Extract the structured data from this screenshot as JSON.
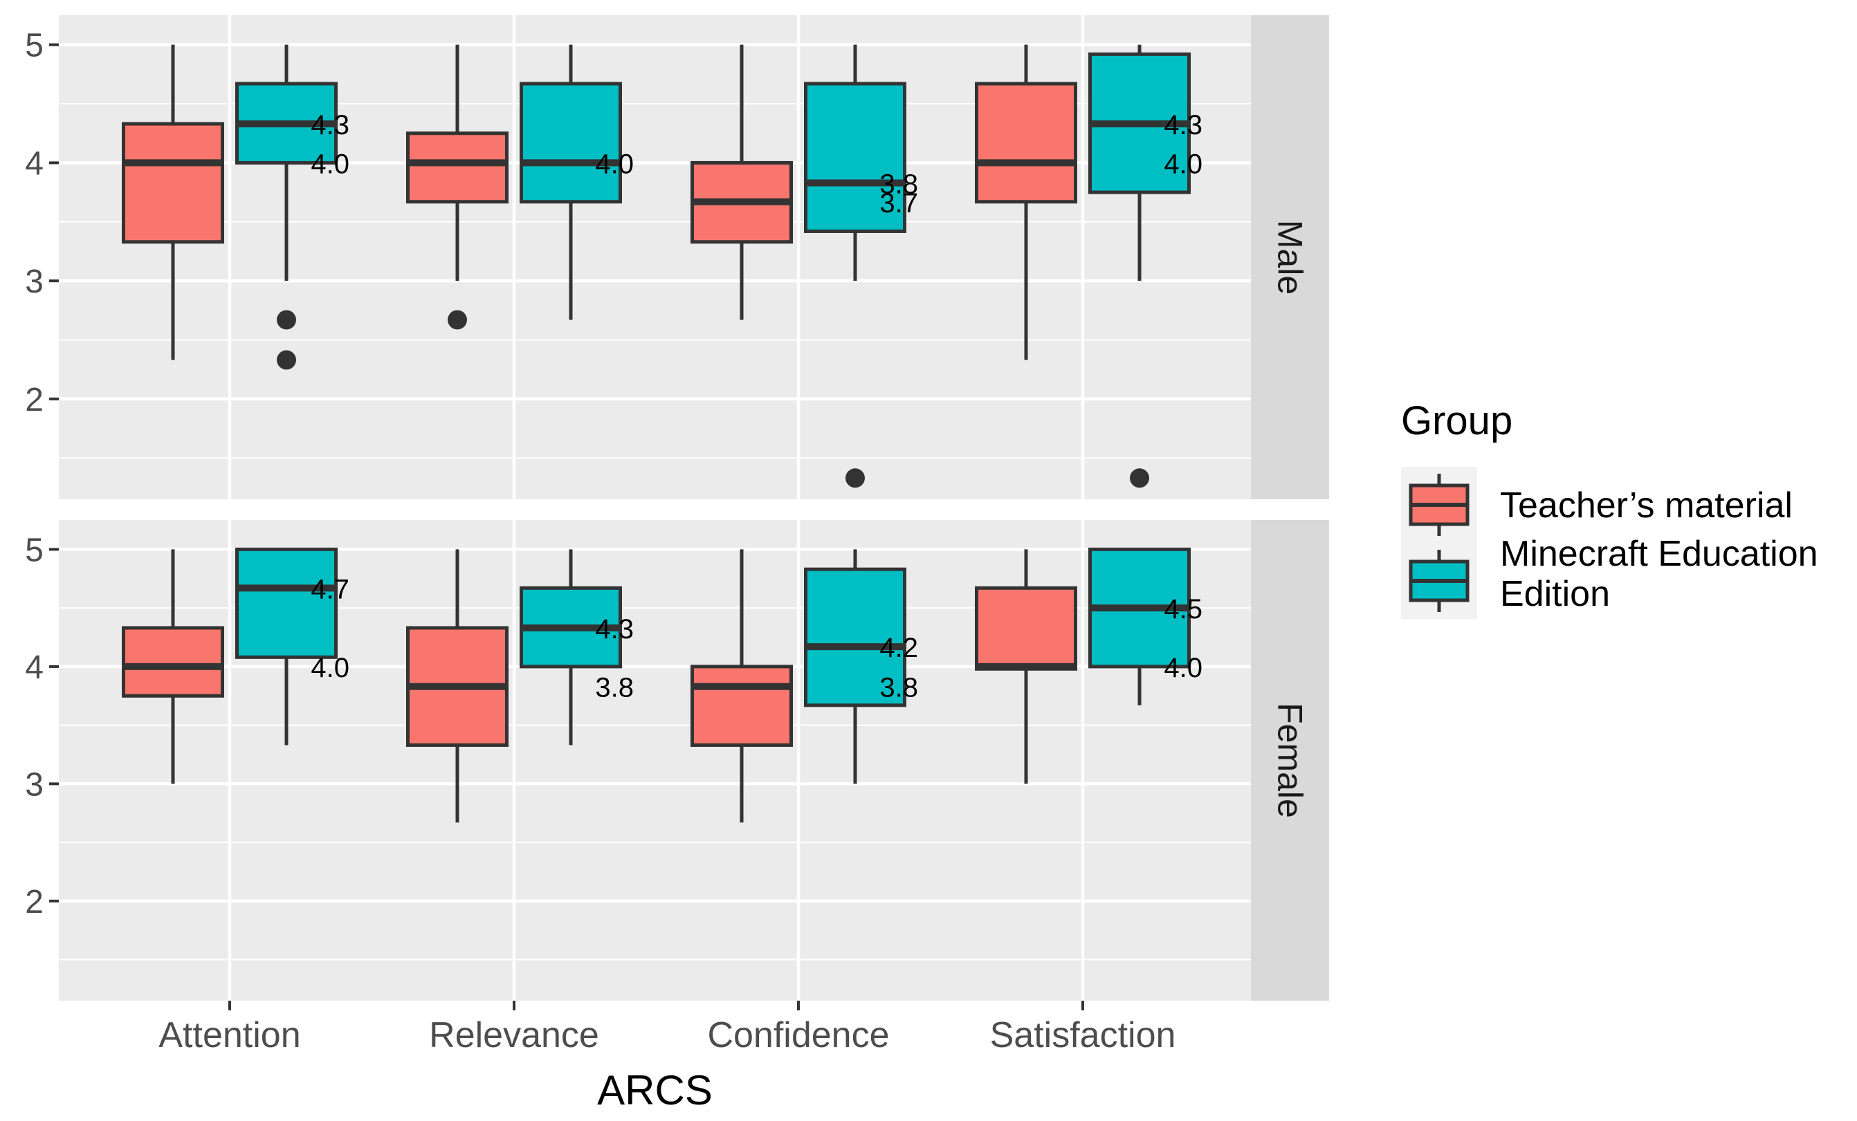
{
  "chart_data": {
    "type": "boxplot",
    "xlabel": "ARCS",
    "ylabel": "",
    "categories": [
      "Attention",
      "Relevance",
      "Confidence",
      "Satisfaction"
    ],
    "y_ticks": [
      2,
      3,
      4,
      5
    ],
    "y_ticks_text": [
      "2",
      "3",
      "4",
      "5"
    ],
    "ylim": [
      1.15,
      5.25
    ],
    "legend": {
      "title": "Group",
      "position": "right",
      "entries": [
        {
          "lines": [
            "Teacher’s material"
          ],
          "color": "#F8766D"
        },
        {
          "lines": [
            "Minecraft Education",
            " Edition"
          ],
          "color": "#00BFC4"
        }
      ]
    },
    "series_colors": [
      "#F8766D",
      "#00BFC4"
    ],
    "panels": [
      {
        "label": "Male",
        "groups": [
          [
            {
              "min": 2.33,
              "q1": 3.33,
              "median": 4.0,
              "q3": 4.33,
              "max": 5.0,
              "outliers": []
            },
            {
              "min": 3.0,
              "q1": 4.0,
              "median": 4.33,
              "q3": 4.67,
              "max": 5.0,
              "outliers": [
                2.67,
                2.33
              ]
            }
          ],
          [
            {
              "min": 3.0,
              "q1": 3.67,
              "median": 4.0,
              "q3": 4.25,
              "max": 5.0,
              "outliers": [
                2.67
              ]
            },
            {
              "min": 2.67,
              "q1": 3.67,
              "median": 4.0,
              "q3": 4.67,
              "max": 5.0,
              "outliers": []
            }
          ],
          [
            {
              "min": 2.67,
              "q1": 3.33,
              "median": 3.67,
              "q3": 4.0,
              "max": 5.0,
              "outliers": []
            },
            {
              "min": 3.0,
              "q1": 3.42,
              "median": 3.83,
              "q3": 4.67,
              "max": 5.0,
              "outliers": [
                1.33
              ]
            }
          ],
          [
            {
              "min": 2.33,
              "q1": 3.67,
              "median": 4.0,
              "q3": 4.67,
              "max": 5.0,
              "outliers": []
            },
            {
              "min": 3.0,
              "q1": 3.75,
              "median": 4.33,
              "q3": 4.92,
              "max": 5.0,
              "outliers": [
                1.33
              ]
            }
          ]
        ],
        "annotations": [
          {
            "cat": 0,
            "y": 4.33,
            "text": "4.3"
          },
          {
            "cat": 0,
            "y": 4.0,
            "text": "4.0"
          },
          {
            "cat": 1,
            "y": 4.0,
            "text": "4.0"
          },
          {
            "cat": 2,
            "y": 3.83,
            "text": "3.8"
          },
          {
            "cat": 2,
            "y": 3.67,
            "text": "3.7"
          },
          {
            "cat": 3,
            "y": 4.33,
            "text": "4.3"
          },
          {
            "cat": 3,
            "y": 4.0,
            "text": "4.0"
          }
        ]
      },
      {
        "label": "Female",
        "groups": [
          [
            {
              "min": 3.0,
              "q1": 3.75,
              "median": 4.0,
              "q3": 4.33,
              "max": 5.0,
              "outliers": []
            },
            {
              "min": 3.33,
              "q1": 4.08,
              "median": 4.67,
              "q3": 5.0,
              "max": 5.0,
              "outliers": []
            }
          ],
          [
            {
              "min": 2.67,
              "q1": 3.33,
              "median": 3.83,
              "q3": 4.33,
              "max": 5.0,
              "outliers": []
            },
            {
              "min": 3.33,
              "q1": 4.0,
              "median": 4.33,
              "q3": 4.67,
              "max": 5.0,
              "outliers": []
            }
          ],
          [
            {
              "min": 2.67,
              "q1": 3.33,
              "median": 3.83,
              "q3": 4.0,
              "max": 5.0,
              "outliers": []
            },
            {
              "min": 3.0,
              "q1": 3.67,
              "median": 4.17,
              "q3": 4.83,
              "max": 5.0,
              "outliers": []
            }
          ],
          [
            {
              "min": 3.0,
              "q1": 3.98,
              "median": 4.0,
              "q3": 4.67,
              "max": 5.0,
              "outliers": []
            },
            {
              "min": 3.67,
              "q1": 4.0,
              "median": 4.5,
              "q3": 5.0,
              "max": 5.0,
              "outliers": []
            }
          ]
        ],
        "annotations": [
          {
            "cat": 0,
            "y": 4.67,
            "text": "4.7"
          },
          {
            "cat": 0,
            "y": 4.0,
            "text": "4.0"
          },
          {
            "cat": 1,
            "y": 4.33,
            "text": "4.3"
          },
          {
            "cat": 1,
            "y": 3.83,
            "text": "3.8"
          },
          {
            "cat": 2,
            "y": 4.17,
            "text": "4.2"
          },
          {
            "cat": 2,
            "y": 3.83,
            "text": "3.8"
          },
          {
            "cat": 3,
            "y": 4.5,
            "text": "4.5"
          },
          {
            "cat": 3,
            "y": 4.0,
            "text": "4.0"
          }
        ]
      }
    ]
  }
}
